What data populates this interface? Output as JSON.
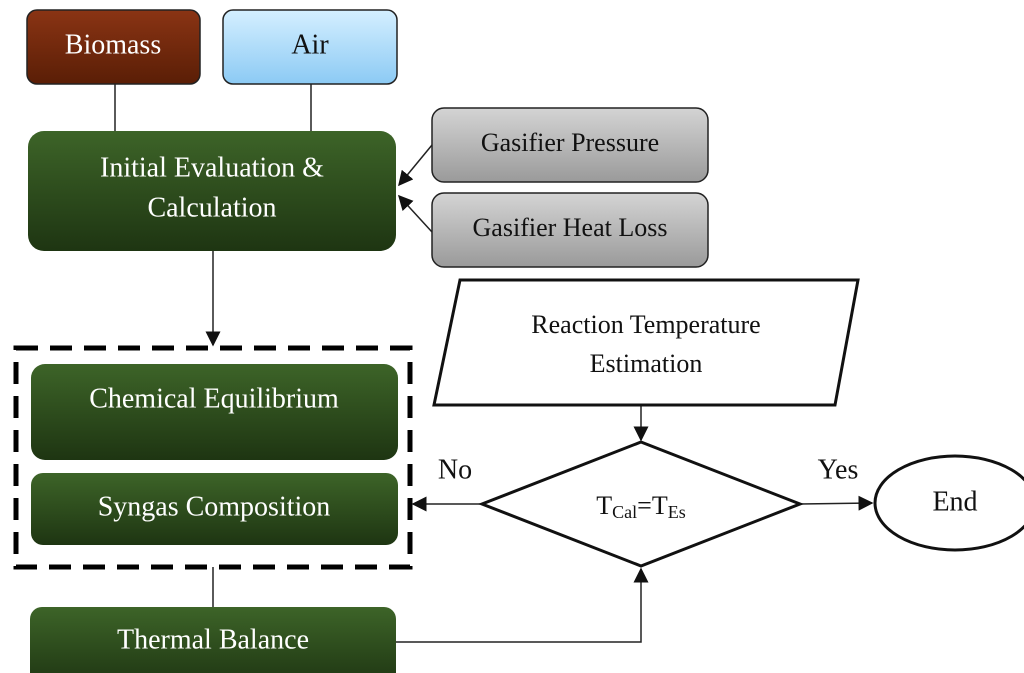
{
  "nodes": [
    {
      "label": "Biomass"
    },
    {
      "label": "Air"
    },
    {
      "label": [
        "Initial Evaluation &",
        "Calculation"
      ]
    },
    {
      "label": "Gasifier Pressure"
    },
    {
      "label": "Gasifier Heat Loss"
    },
    {
      "label": "Chemical Equilibrium"
    },
    {
      "label": "Syngas Composition"
    },
    {
      "label": "Thermal Balance"
    },
    {
      "label": [
        "Reaction Temperature",
        "Estimation"
      ]
    },
    {
      "label": [
        "T",
        "Cal",
        "=T",
        "Es"
      ]
    },
    {
      "label": "End"
    }
  ],
  "edges": [
    {
      "label": "No"
    },
    {
      "label": "Yes"
    }
  ]
}
